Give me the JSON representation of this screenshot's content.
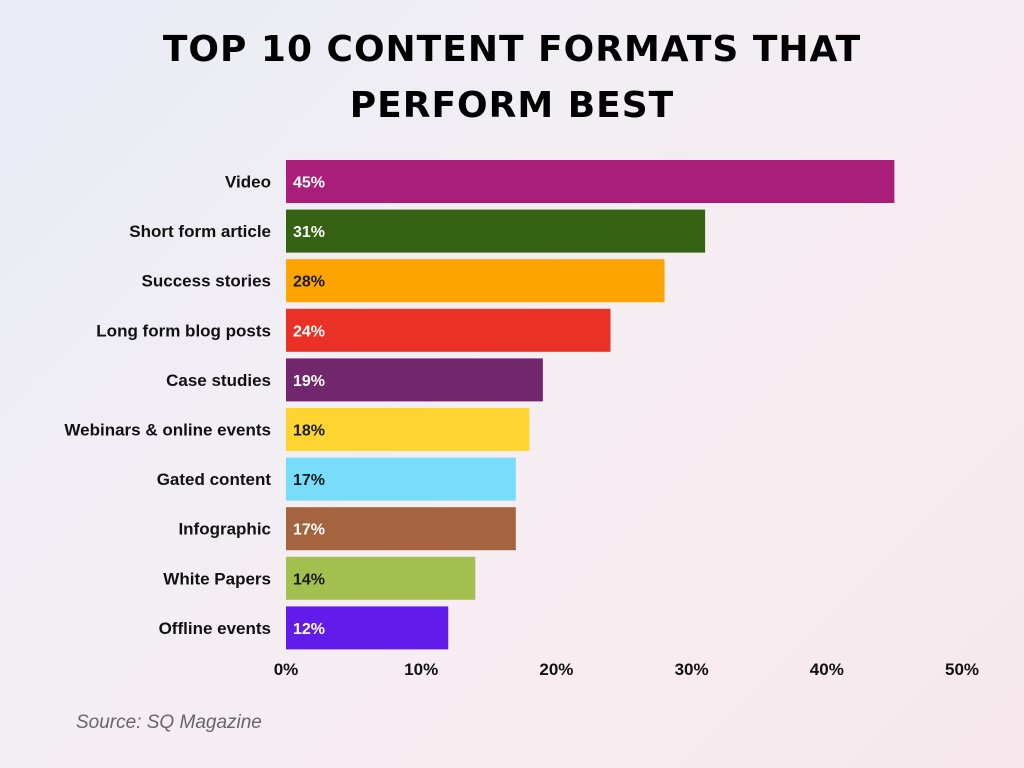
{
  "title": "TOP 10 CONTENT FORMATS THAT PERFORM BEST",
  "source": "Source: SQ Magazine",
  "chart_data": {
    "type": "bar",
    "orientation": "horizontal",
    "title": "TOP 10 CONTENT FORMATS THAT PERFORM BEST",
    "xlabel": "",
    "ylabel": "",
    "xlim": [
      0,
      50
    ],
    "x_ticks": [
      "0%",
      "10%",
      "20%",
      "30%",
      "40%",
      "50%"
    ],
    "x_tick_values": [
      0,
      10,
      20,
      30,
      40,
      50
    ],
    "grid": false,
    "categories": [
      "Video",
      "Short form article",
      "Success stories",
      "Long form blog posts",
      "Case studies",
      "Webinars & online events",
      "Gated content",
      "Infographic",
      "White Papers",
      "Offline events"
    ],
    "values": [
      45,
      31,
      28,
      24,
      19,
      18,
      17,
      17,
      14,
      12
    ],
    "value_labels": [
      "45%",
      "31%",
      "28%",
      "24%",
      "19%",
      "18%",
      "17%",
      "17%",
      "14%",
      "12%"
    ],
    "colors": [
      "#a91e79",
      "#356113",
      "#fea400",
      "#e93125",
      "#72276d",
      "#fdd430",
      "#78dcfb",
      "#a56440",
      "#a3bf4f",
      "#611bea"
    ],
    "label_colors": [
      "#ffffff",
      "#ffffff",
      "#1a1a1a",
      "#ffffff",
      "#ffffff",
      "#1a1a1a",
      "#1a1a1a",
      "#ffffff",
      "#1a1a1a",
      "#ffffff"
    ]
  }
}
